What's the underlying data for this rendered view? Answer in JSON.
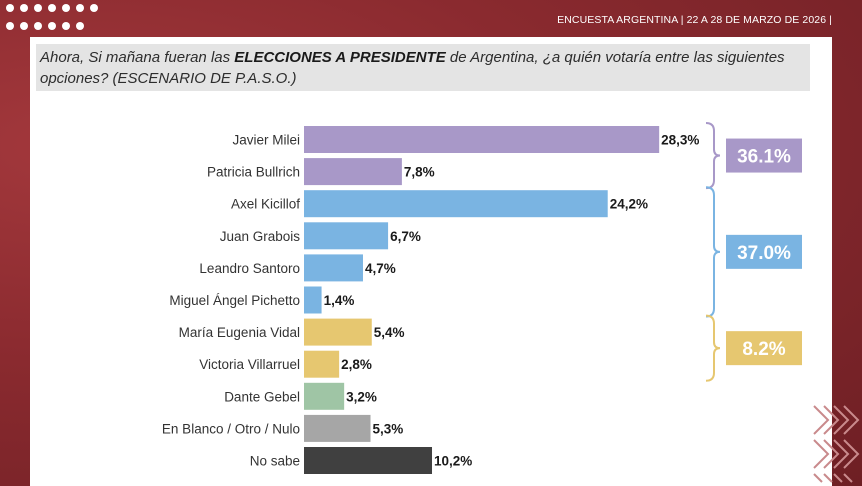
{
  "header": {
    "title": "ENCUESTA ARGENTINA | 22 A 28 DE MARZO DE 2026 |"
  },
  "question": {
    "prefix": "Ahora, Si mañana fueran las ",
    "emphasis": "ELECCIONES A PRESIDENTE",
    "suffix": " de Argentina, ¿a quién votaría entre las siguientes opciones? (ESCENARIO DE P.A.S.O.)"
  },
  "chart_data": {
    "type": "bar",
    "orientation": "horizontal",
    "categories": [
      "Javier Milei",
      "Patricia Bullrich",
      "Axel Kicillof",
      "Juan Grabois",
      "Leandro Santoro",
      "Miguel Ángel Pichetto",
      "María Eugenia Vidal",
      "Victoria Villarruel",
      "Dante Gebel",
      "En Blanco / Otro / Nulo",
      "No sabe"
    ],
    "values": [
      28.3,
      7.8,
      24.2,
      6.7,
      4.7,
      1.4,
      5.4,
      2.8,
      3.2,
      5.3,
      10.2
    ],
    "value_labels": [
      "28,3%",
      "7,8%",
      "24,2%",
      "6,7%",
      "4,7%",
      "1,4%",
      "5,4%",
      "2,8%",
      "3,2%",
      "5,3%",
      "10,2%"
    ],
    "bar_colors": [
      "#a898c8",
      "#a898c8",
      "#7ab4e2",
      "#7ab4e2",
      "#7ab4e2",
      "#7ab4e2",
      "#e6c770",
      "#e6c770",
      "#9fc5a5",
      "#a6a6a6",
      "#404040"
    ],
    "groups": [
      {
        "label": "36.1%",
        "first": 0,
        "last": 1,
        "color": "#a898c8"
      },
      {
        "label": "37.0%",
        "first": 2,
        "last": 5,
        "color": "#7ab4e2"
      },
      {
        "label": "8.2%",
        "first": 6,
        "last": 7,
        "color": "#e6c770"
      }
    ],
    "xlim": [
      0,
      30
    ]
  }
}
